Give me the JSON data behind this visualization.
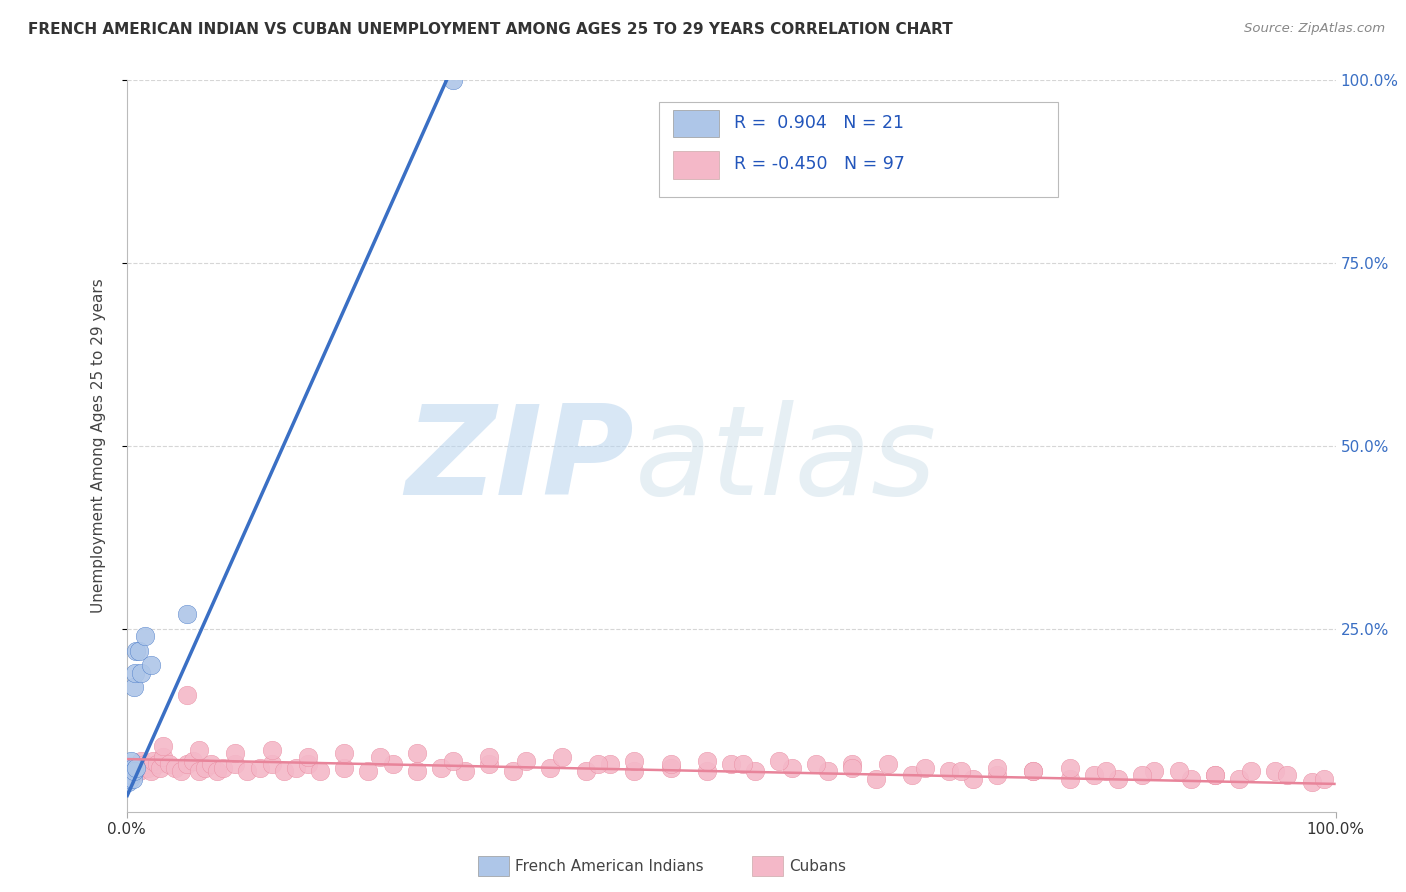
{
  "title": "FRENCH AMERICAN INDIAN VS CUBAN UNEMPLOYMENT AMONG AGES 25 TO 29 YEARS CORRELATION CHART",
  "source": "Source: ZipAtlas.com",
  "ylabel": "Unemployment Among Ages 25 to 29 years",
  "watermark_zip": "ZIP",
  "watermark_atlas": "atlas",
  "legend_label_1": "French American Indians",
  "legend_label_2": "Cubans",
  "R1": 0.904,
  "N1": 21,
  "R2": -0.45,
  "N2": 97,
  "color1": "#aec6e8",
  "color2": "#f4b8c8",
  "line_color1": "#3a6fc4",
  "line_color2": "#e8849a",
  "background": "#ffffff",
  "grid_color": "#cccccc",
  "xlim": [
    0.0,
    1.0
  ],
  "ylim": [
    0.0,
    1.0
  ],
  "french_x": [
    0.001,
    0.001,
    0.002,
    0.002,
    0.003,
    0.003,
    0.004,
    0.004,
    0.005,
    0.005,
    0.006,
    0.006,
    0.007,
    0.008,
    0.008,
    0.01,
    0.012,
    0.015,
    0.02,
    0.05,
    0.27
  ],
  "french_y": [
    0.04,
    0.06,
    0.05,
    0.055,
    0.045,
    0.06,
    0.05,
    0.07,
    0.045,
    0.06,
    0.17,
    0.055,
    0.19,
    0.06,
    0.22,
    0.22,
    0.19,
    0.24,
    0.2,
    0.27,
    1.0
  ],
  "cuban_x": [
    0.005,
    0.008,
    0.01,
    0.012,
    0.015,
    0.018,
    0.02,
    0.022,
    0.025,
    0.028,
    0.03,
    0.035,
    0.04,
    0.045,
    0.05,
    0.055,
    0.06,
    0.065,
    0.07,
    0.075,
    0.08,
    0.09,
    0.1,
    0.11,
    0.12,
    0.13,
    0.14,
    0.15,
    0.16,
    0.18,
    0.2,
    0.22,
    0.24,
    0.26,
    0.28,
    0.3,
    0.32,
    0.35,
    0.38,
    0.4,
    0.42,
    0.45,
    0.48,
    0.5,
    0.52,
    0.55,
    0.58,
    0.6,
    0.62,
    0.65,
    0.68,
    0.7,
    0.72,
    0.75,
    0.78,
    0.8,
    0.82,
    0.85,
    0.88,
    0.9,
    0.92,
    0.95,
    0.98,
    0.03,
    0.06,
    0.09,
    0.12,
    0.15,
    0.18,
    0.21,
    0.24,
    0.27,
    0.3,
    0.33,
    0.36,
    0.39,
    0.42,
    0.45,
    0.48,
    0.51,
    0.54,
    0.57,
    0.6,
    0.63,
    0.66,
    0.69,
    0.72,
    0.75,
    0.78,
    0.81,
    0.84,
    0.87,
    0.9,
    0.93,
    0.96,
    0.99,
    0.05
  ],
  "cuban_y": [
    0.05,
    0.06,
    0.055,
    0.07,
    0.065,
    0.06,
    0.055,
    0.07,
    0.065,
    0.06,
    0.075,
    0.065,
    0.06,
    0.055,
    0.065,
    0.07,
    0.055,
    0.06,
    0.065,
    0.055,
    0.06,
    0.065,
    0.055,
    0.06,
    0.065,
    0.055,
    0.06,
    0.065,
    0.055,
    0.06,
    0.055,
    0.065,
    0.055,
    0.06,
    0.055,
    0.065,
    0.055,
    0.06,
    0.055,
    0.065,
    0.055,
    0.06,
    0.055,
    0.065,
    0.055,
    0.06,
    0.055,
    0.065,
    0.045,
    0.05,
    0.055,
    0.045,
    0.05,
    0.055,
    0.045,
    0.05,
    0.045,
    0.055,
    0.045,
    0.05,
    0.045,
    0.055,
    0.04,
    0.09,
    0.085,
    0.08,
    0.085,
    0.075,
    0.08,
    0.075,
    0.08,
    0.07,
    0.075,
    0.07,
    0.075,
    0.065,
    0.07,
    0.065,
    0.07,
    0.065,
    0.07,
    0.065,
    0.06,
    0.065,
    0.06,
    0.055,
    0.06,
    0.055,
    0.06,
    0.055,
    0.05,
    0.055,
    0.05,
    0.055,
    0.05,
    0.045,
    0.16
  ]
}
